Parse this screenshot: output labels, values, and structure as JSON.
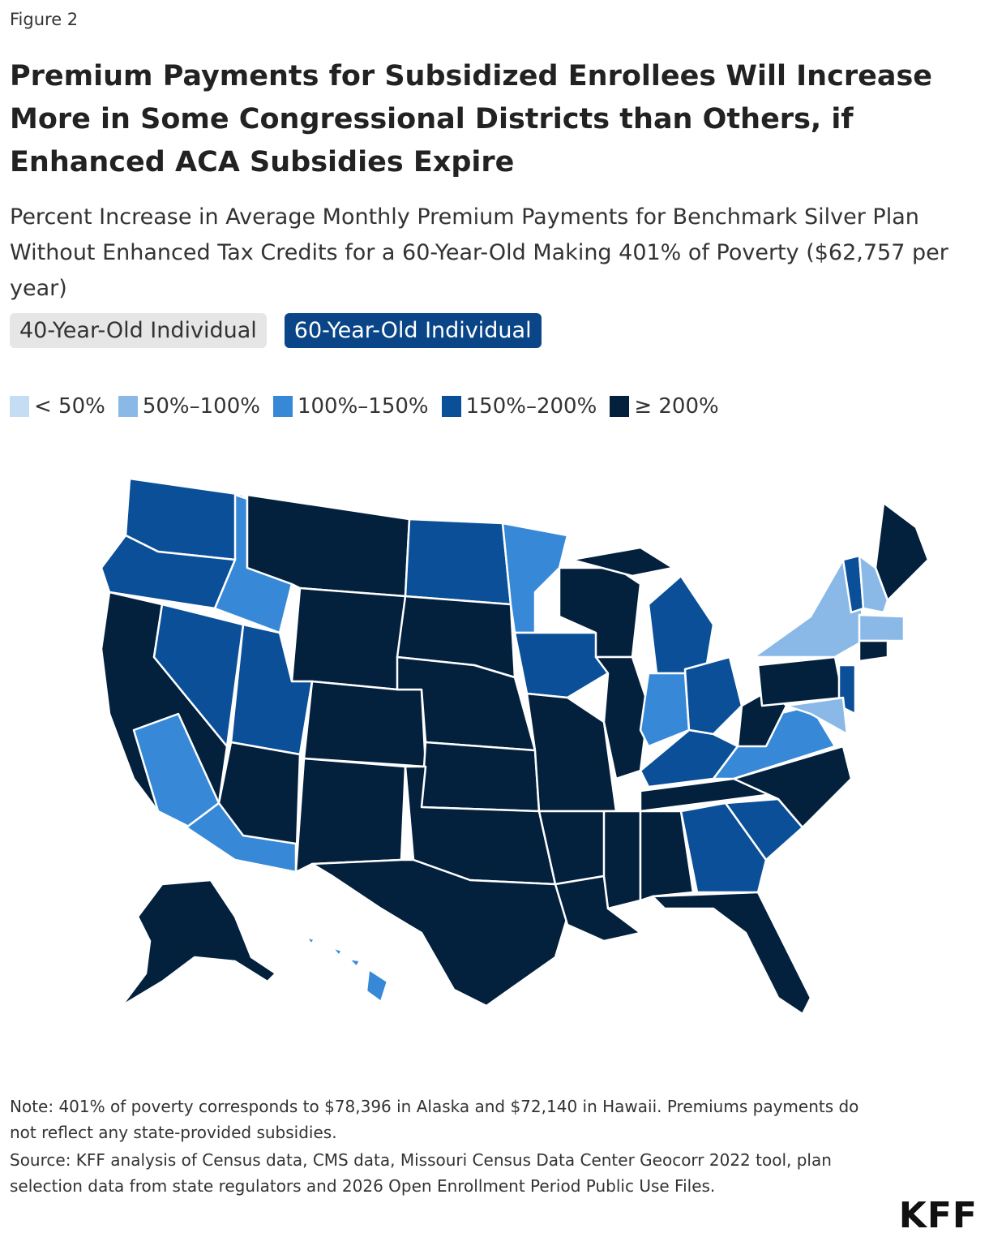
{
  "figure_label": "Figure 2",
  "title": "Premium Payments for Subsidized Enrollees Will Increase More in Some Congressional Districts than Others, if Enhanced ACA Subsidies Expire",
  "subtitle": "Percent Increase in Average Monthly Premium Payments for Benchmark Silver Plan Without Enhanced Tax Credits for a 60-Year-Old Making 401% of Poverty ($62,757 per year)",
  "tabs": [
    {
      "label": "40-Year-Old Individual",
      "selected": false
    },
    {
      "label": "60-Year-Old Individual",
      "selected": true
    }
  ],
  "legend": [
    {
      "label": "< 50%",
      "color": "#c5ddf3"
    },
    {
      "label": "50%–100%",
      "color": "#8ab9e8"
    },
    {
      "label": "100%–150%",
      "color": "#3789d8"
    },
    {
      "label": "150%–200%",
      "color": "#0a4f98"
    },
    {
      "label": "≥ 200%",
      "color": "#03203d"
    }
  ],
  "note": "Note: 401% of poverty corresponds to $78,396 in Alaska and $72,140 in Hawaii. Premiums payments do not reflect any state-provided subsidies.",
  "source": "Source: KFF analysis of Census data, CMS data, Missouri Census Data Center Geocorr 2022 tool, plan selection data from state regulators and 2026 Open Enrollment Period Public Use Files.",
  "logo": "KFF"
}
